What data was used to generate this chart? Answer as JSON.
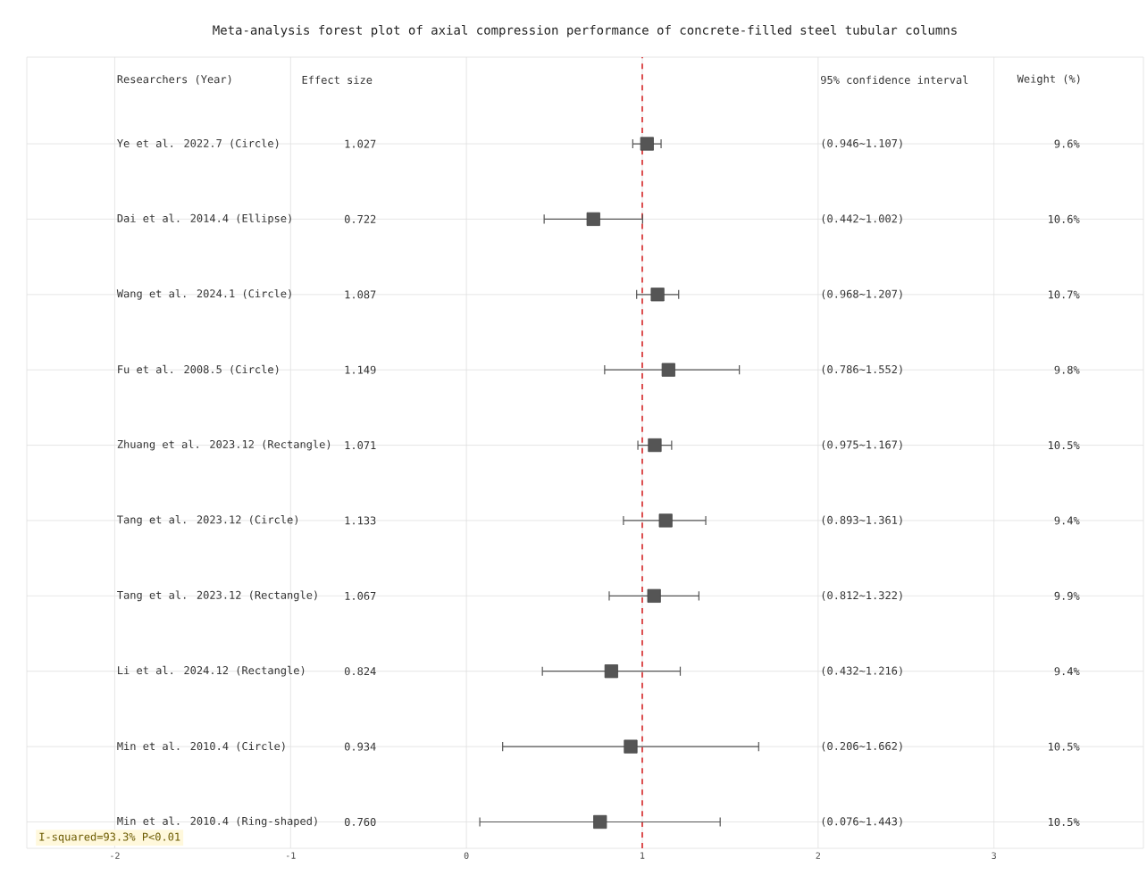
{
  "chart_data": {
    "type": "scatter",
    "orientation": "horizontal",
    "title": "Meta-analysis forest plot of axial compression performance of concrete-filled steel tubular columns",
    "categories": [
      "Ye et al. 2022.7 (Circle)",
      "Dai et al. 2014.4 (Ellipse)",
      "Wang et al. 2024.1 (Circle)",
      "Fu et al. 2008.5 (Circle)",
      "Zhuang et al. 2023.12 (Rectangle)",
      "Tang et al. 2023.12 (Circle)",
      "Tang et al. 2023.12 (Rectangle)",
      "Li et al. 2024.12 (Rectangle)",
      "Min et al. 2010.4 (Circle)",
      "Min et al. 2010.4 (Ring-shaped)"
    ],
    "values": [
      1.027,
      0.722,
      1.087,
      1.149,
      1.071,
      1.133,
      1.067,
      0.824,
      0.934,
      0.76
    ],
    "errors": [
      [
        0.946,
        1.107
      ],
      [
        0.442,
        1.002
      ],
      [
        0.968,
        1.207
      ],
      [
        0.786,
        1.552
      ],
      [
        0.975,
        1.167
      ],
      [
        0.893,
        1.361
      ],
      [
        0.812,
        1.322
      ],
      [
        0.432,
        1.216
      ],
      [
        0.206,
        1.662
      ],
      [
        0.076,
        1.443
      ]
    ],
    "color": "#555555",
    "marker": "square",
    "xlim": [
      -2.5,
      3.85
    ],
    "xticks": [
      -2,
      -1,
      0,
      1,
      2,
      3
    ],
    "grid": true,
    "ref_lines": [
      {
        "axis": "x",
        "value": 1,
        "color": "#d62728",
        "line_style": "dashed"
      }
    ],
    "annotations": [
      "Researchers (Year)",
      "Effect size",
      "95% confidence interval",
      "Weight (%)",
      "I-squared=93.3%  P<0.01",
      "1.027",
      "0.722",
      "1.087",
      "1.149",
      "1.071",
      "1.133",
      "1.067",
      "0.824",
      "0.934",
      "0.760",
      "(0.946~1.107)",
      "(0.442~1.002)",
      "(0.968~1.207)",
      "(0.786~1.552)",
      "(0.975~1.167)",
      "(0.893~1.361)",
      "(0.812~1.322)",
      "(0.432~1.216)",
      "(0.206~1.662)",
      "(0.076~1.443)",
      "9.6%",
      "10.6%",
      "10.7%",
      "9.8%",
      "10.5%",
      "9.4%",
      "9.9%",
      "9.4%",
      "10.5%",
      "10.5%"
    ]
  }
}
